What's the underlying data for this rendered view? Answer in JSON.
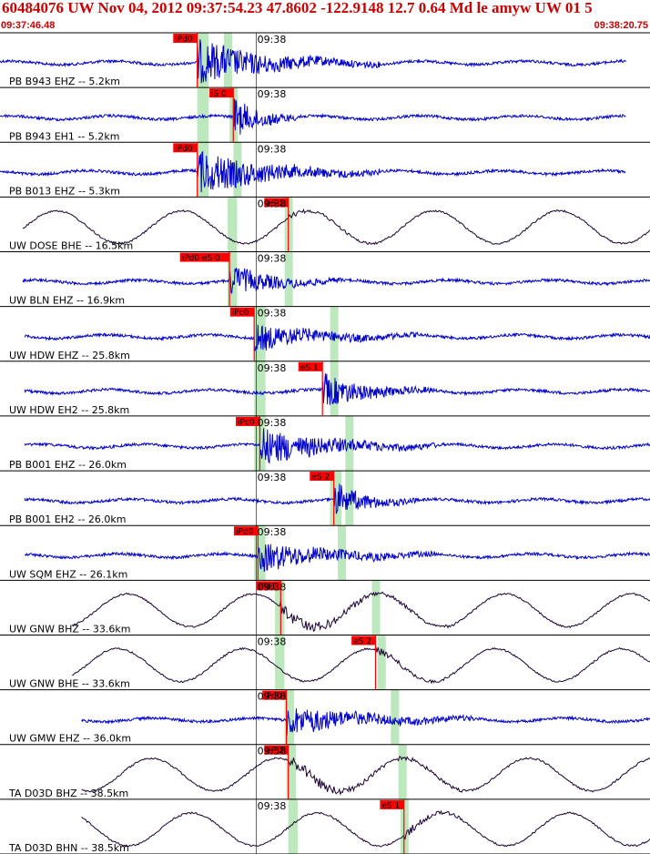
{
  "header": {
    "title": "60484076 UW Nov 04, 2012 09:37:54.23   47.8602 -122.9148 12.7 0.64 Md le amyw UW 01   5",
    "start_time": "09:37:46.48",
    "end_time": "09:38:20.75"
  },
  "colors": {
    "title": "#cc0000",
    "pick": "#ff0000",
    "window": "#bde8bd",
    "trace_blue": "#0000cc",
    "trace_dark": "#1a0033",
    "grid": "#000000"
  },
  "chart_data": {
    "type": "line",
    "title": "60484076 UW Nov 04, 2012 09:37:54.23   47.8602 -122.9148 12.7 0.64 Md le amyw UW 01   5",
    "x_range": [
      "09:37:46.48",
      "09:38:20.75"
    ],
    "time_tick_label": "09:38",
    "traces": [
      {
        "label": "PB B943 EHZ -- 5.2km",
        "pick": "iPd0",
        "style": "hf",
        "color": "blue",
        "pick_t": 10.4,
        "window_t": [
          10.4,
          11.0
        ],
        "s_t": 12.0,
        "coda_t": 20,
        "end_t": 33.0,
        "start_t": 0,
        "amp": 24
      },
      {
        "label": "PB B943 EH1 -- 5.2km",
        "pick": "iS 0",
        "style": "hf",
        "color": "blue",
        "pick_t": 12.3,
        "window_t": [
          10.4,
          11.0
        ],
        "s_t": 12.3,
        "coda_t": 16,
        "end_t": 33.0,
        "start_t": 0,
        "amp": 22
      },
      {
        "label": "PB B013 EHZ -- 5.3km",
        "pick": "iPd0",
        "style": "hf",
        "color": "blue",
        "pick_t": 10.4,
        "window_t": [
          10.4,
          11.0
        ],
        "s_t": 12.5,
        "coda_t": 20,
        "end_t": 33.0,
        "start_t": 0,
        "amp": 24
      },
      {
        "label": "UW DOSE BHE -- 16.5km",
        "pick": "eS 1",
        "style": "lp",
        "color": "dark",
        "pick_t": 15.2,
        "window_t": [
          12.0,
          12.5
        ],
        "s_t": 15.2,
        "coda_t": 21,
        "end_t": 34.3,
        "start_t": 1.2,
        "amp": 8
      },
      {
        "label": "UW BLN EHZ -- 16.9km",
        "pick": "iPd0 eS 0",
        "style": "hf",
        "color": "blue",
        "pick_t": 12.1,
        "window_t": [
          12.0,
          12.5
        ],
        "s_t": 15.2,
        "coda_t": 18,
        "end_t": 34.3,
        "start_t": 1.2,
        "amp": 16
      },
      {
        "label": "UW HDW EHZ -- 25.8km",
        "pick": "iPc0",
        "style": "hf",
        "color": "blue",
        "pick_t": 13.4,
        "window_t": [
          13.4,
          14.0
        ],
        "s_t": 17.6,
        "coda_t": 22,
        "end_t": 35.6,
        "start_t": 1.3,
        "amp": 14
      },
      {
        "label": "UW HDW EH2 -- 25.8km",
        "pick": "eS 1",
        "style": "hf",
        "color": "blue",
        "pick_t": 17.0,
        "window_t": [
          13.4,
          14.0
        ],
        "s_t": 17.6,
        "coda_t": 23,
        "end_t": 35.6,
        "start_t": 1.3,
        "amp": 18
      },
      {
        "label": "PB B001 EHZ -- 26.0km",
        "pick": "iPc0",
        "style": "hf",
        "color": "blue",
        "pick_t": 13.7,
        "window_t": [
          13.4,
          14.0
        ],
        "s_t": 18.4,
        "coda_t": 23,
        "end_t": 35.6,
        "start_t": 1.3,
        "amp": 20
      },
      {
        "label": "PB B001 EH2 -- 26.0km",
        "pick": "eS 2",
        "style": "hf",
        "color": "blue",
        "pick_t": 17.6,
        "window_t": [
          17.4,
          18.0
        ],
        "s_t": 18.4,
        "coda_t": 22,
        "end_t": 35.6,
        "start_t": 1.3,
        "amp": 18
      },
      {
        "label": "UW SQM EHZ -- 26.1km",
        "pick": "iPd0",
        "style": "hf",
        "color": "blue",
        "pick_t": 13.6,
        "window_t": [
          13.4,
          14.0
        ],
        "s_t": 18.0,
        "coda_t": 23,
        "end_t": 35.6,
        "start_t": 1.3,
        "amp": 16
      },
      {
        "label": "UW GNW BHZ -- 33.6km",
        "pick": "iPd1",
        "style": "lp",
        "color": "dark",
        "pick_t": 14.8,
        "window_t": [
          14.5,
          15.0
        ],
        "s_t": 19.8,
        "coda_t": 24,
        "end_t": 36.6,
        "start_t": 3.8,
        "amp": 30
      },
      {
        "label": "UW GNW BHE -- 33.6km",
        "pick": "eS 2",
        "style": "lp",
        "color": "dark",
        "pick_t": 19.8,
        "window_t": [
          14.5,
          15.0
        ],
        "s_t": 20.1,
        "coda_t": 24,
        "end_t": 36.6,
        "start_t": 3.8,
        "amp": 18
      },
      {
        "label": "UW GMW EHZ -- 36.0km",
        "pick": "iPd0",
        "style": "hf",
        "color": "blue",
        "pick_t": 15.1,
        "window_t": [
          15.0,
          15.5
        ],
        "s_t": 20.8,
        "coda_t": 25,
        "end_t": 37.0,
        "start_t": 4.3,
        "amp": 16
      },
      {
        "label": "TA D03D BHZ -- 38.5km",
        "pick": "eP 2",
        "style": "lp",
        "color": "dark",
        "pick_t": 15.2,
        "window_t": [
          15.1,
          15.6
        ],
        "s_t": 21.2,
        "coda_t": 25,
        "end_t": 37.0,
        "start_t": 4.3,
        "amp": 26
      },
      {
        "label": "TA D03D BHN -- 38.5km",
        "pick": "eS 1",
        "style": "lp",
        "color": "dark",
        "pick_t": 21.3,
        "window_t": [
          15.2,
          15.7
        ],
        "s_t": 21.3,
        "coda_t": 25,
        "end_t": 37.0,
        "start_t": 4.3,
        "amp": 18
      }
    ]
  }
}
